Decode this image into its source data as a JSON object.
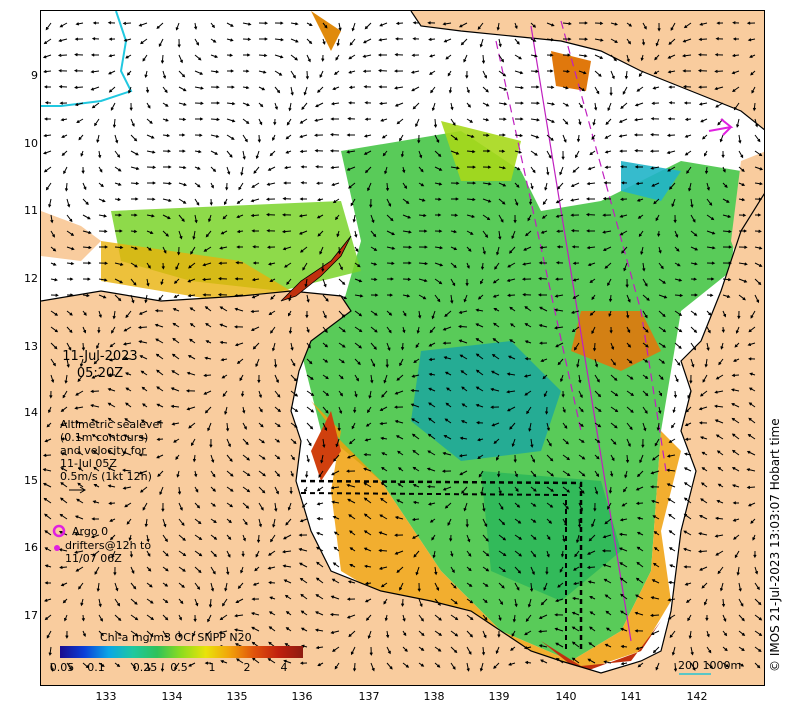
{
  "map": {
    "x_ticks": [
      "133",
      "134",
      "135",
      "136",
      "137",
      "138",
      "139",
      "140",
      "141",
      "142"
    ],
    "y_ticks": [
      "9",
      "10",
      "11",
      "12",
      "13",
      "14",
      "15",
      "16",
      "17"
    ]
  },
  "date": {
    "line1": "11-Jul-2023",
    "line2": "05:20Z"
  },
  "altimetry": {
    "line1": "Altimetric sealevel",
    "line2": "(0.1m contours)",
    "line3": "and velocity for",
    "line4": "11-Jul 05Z",
    "line5": "0.5m/s (1kt 12h)"
  },
  "argo": {
    "label": "Argo 0"
  },
  "drifters": {
    "line1": "drifters@12h to",
    "line2": "11/07 06Z"
  },
  "colorbar": {
    "title": "Chl-a mg/m3 OCi SNPP N20",
    "ticks": [
      "0.05",
      "0.1",
      "0.25",
      "0.5",
      "1",
      "2",
      "4"
    ]
  },
  "scale": {
    "label": "200  1000m"
  },
  "credit": "© IMOS 21-Jul-2023 13:03:07 Hobart time",
  "colors": {
    "land": "#f9cc9e",
    "argo": "#e020e0",
    "accent_cyan": "#20c8e0"
  }
}
